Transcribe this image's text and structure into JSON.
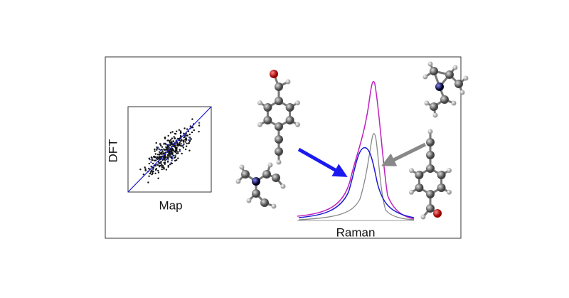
{
  "scatter_panel": {
    "y_label": "DFT",
    "x_label": "Map"
  },
  "spectrum_panel": {
    "x_label": "Raman"
  }
}
